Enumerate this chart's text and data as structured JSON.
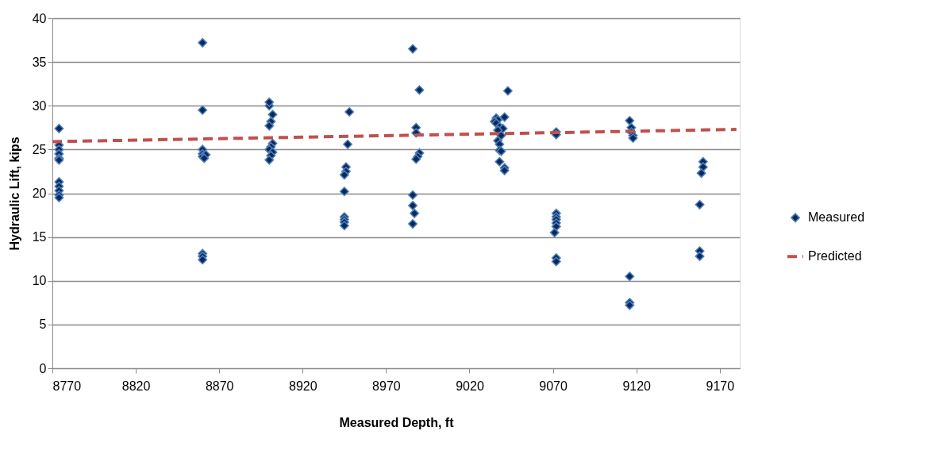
{
  "chart_data": {
    "type": "scatter",
    "xlabel": "Measured Depth, ft",
    "ylabel": "Hydraulic Lift, kips",
    "xlim": [
      8770,
      9182
    ],
    "xticks": [
      8770,
      8820,
      8870,
      8920,
      8970,
      9020,
      9070,
      9120,
      9170
    ],
    "ylim": [
      0,
      40
    ],
    "yticks": [
      0,
      5,
      10,
      15,
      20,
      25,
      30,
      35,
      40
    ],
    "grid": "y",
    "legend": "right",
    "marker": "diamond",
    "series": [
      {
        "name": "Measured",
        "color": "#0b2a5c",
        "x": [
          8774,
          8774,
          8774,
          8774,
          8774,
          8774,
          8774,
          8774,
          8774,
          8774,
          8774,
          8860,
          8860,
          8860,
          8860,
          8860,
          8862,
          8861,
          8860,
          8860,
          8860,
          8900,
          8900,
          8902,
          8901,
          8900,
          8902,
          8901,
          8900,
          8902,
          8901,
          8900,
          8948,
          8947,
          8946,
          8946,
          8945,
          8945,
          8945,
          8945,
          8945,
          8945,
          8990,
          8990,
          8986,
          8988,
          8988,
          8989,
          8988,
          8986,
          8986,
          8987,
          8986,
          9043,
          9036,
          9037,
          9035,
          9036,
          9038,
          9041,
          9040,
          9037,
          9039,
          9037,
          9038,
          9038,
          9039,
          9038,
          9041,
          9041,
          9072,
          9072,
          9072,
          9072,
          9072,
          9072,
          9072,
          9071,
          9072,
          9072,
          9116,
          9117,
          9117,
          9118,
          9118,
          9116,
          9116,
          9116,
          9160,
          9160,
          9159,
          9158,
          9158,
          9158
        ],
        "values": [
          27.4,
          25.5,
          25.0,
          24.5,
          24.0,
          23.8,
          21.3,
          20.8,
          20.3,
          19.8,
          19.5,
          37.2,
          29.5,
          25.0,
          24.5,
          24.2,
          24.4,
          24.0,
          13.1,
          12.8,
          12.4,
          30.0,
          30.4,
          29.0,
          28.2,
          27.7,
          25.7,
          25.3,
          25.0,
          24.7,
          24.3,
          23.8,
          29.3,
          25.6,
          23.0,
          22.5,
          22.1,
          20.2,
          17.3,
          17.0,
          16.7,
          16.3,
          31.8,
          24.6,
          36.5,
          27.5,
          26.9,
          24.2,
          23.9,
          19.8,
          18.6,
          17.7,
          16.5,
          31.7,
          28.6,
          28.4,
          28.2,
          28.0,
          27.6,
          28.7,
          27.4,
          27.2,
          26.6,
          26.0,
          25.6,
          24.9,
          24.8,
          23.6,
          22.9,
          22.6,
          27.0,
          26.7,
          17.7,
          17.3,
          17.0,
          16.6,
          16.2,
          15.5,
          12.6,
          12.2,
          28.3,
          27.5,
          27.0,
          26.6,
          26.3,
          10.5,
          7.5,
          7.2,
          23.6,
          23.0,
          22.3,
          18.7,
          13.4,
          12.8
        ]
      },
      {
        "name": "Predicted",
        "type": "line",
        "color": "#c0504d",
        "line_style": "dashed",
        "marker": "none",
        "x": [
          8770,
          9180
        ],
        "values": [
          25.9,
          27.3
        ]
      }
    ]
  }
}
